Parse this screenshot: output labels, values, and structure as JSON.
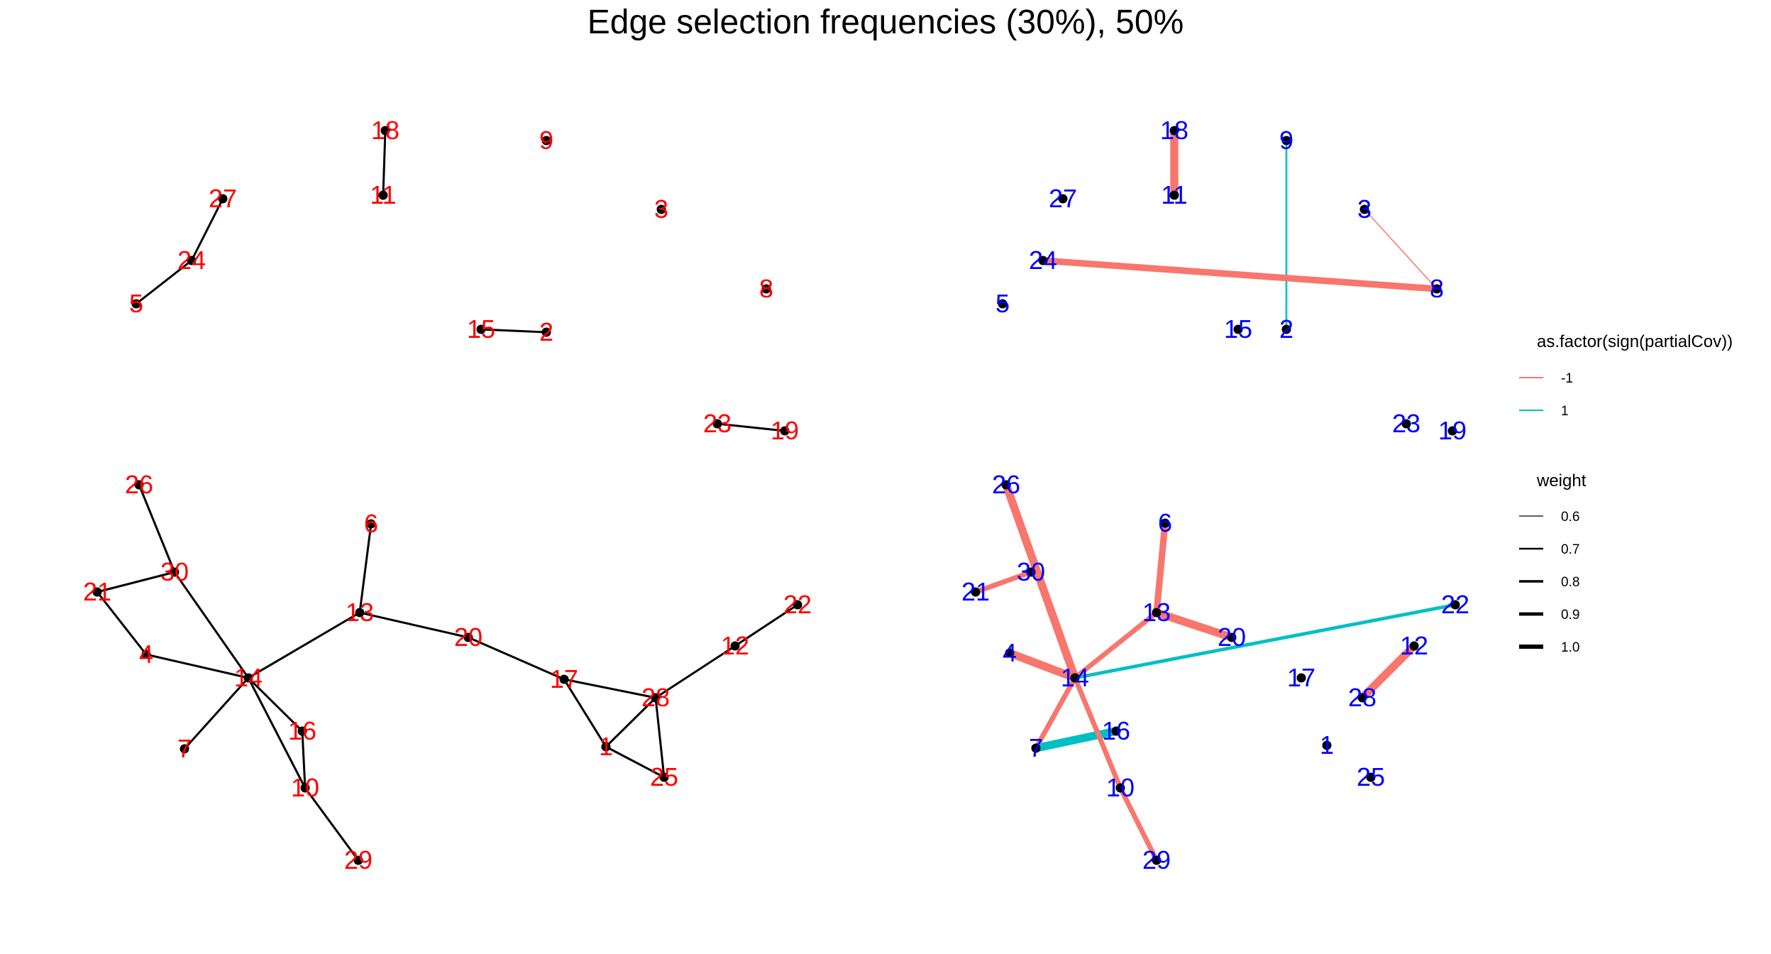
{
  "title": "Edge selection frequencies (30%), 50%",
  "colors": {
    "left_label": "#ff0000",
    "right_label": "#0000ff",
    "left_edge": "#000000",
    "neg": "#f8766d",
    "pos": "#00bfc4",
    "node": "#000000"
  },
  "nodes": [
    {
      "id": "1"
    },
    {
      "id": "2"
    },
    {
      "id": "3"
    },
    {
      "id": "4"
    },
    {
      "id": "5"
    },
    {
      "id": "6"
    },
    {
      "id": "7"
    },
    {
      "id": "8"
    },
    {
      "id": "9"
    },
    {
      "id": "10"
    },
    {
      "id": "11"
    },
    {
      "id": "12"
    },
    {
      "id": "13"
    },
    {
      "id": "14"
    },
    {
      "id": "15"
    },
    {
      "id": "16"
    },
    {
      "id": "17"
    },
    {
      "id": "18"
    },
    {
      "id": "19"
    },
    {
      "id": "20"
    },
    {
      "id": "21"
    },
    {
      "id": "22"
    },
    {
      "id": "23"
    },
    {
      "id": "24"
    },
    {
      "id": "25"
    },
    {
      "id": "26"
    },
    {
      "id": "27"
    },
    {
      "id": "28"
    },
    {
      "id": "29"
    },
    {
      "id": "30"
    }
  ],
  "left_edges": [
    [
      "27",
      "24"
    ],
    [
      "24",
      "5"
    ],
    [
      "18",
      "11"
    ],
    [
      "15",
      "2"
    ],
    [
      "23",
      "19"
    ],
    [
      "26",
      "30"
    ],
    [
      "30",
      "21"
    ],
    [
      "21",
      "4"
    ],
    [
      "4",
      "14"
    ],
    [
      "30",
      "14"
    ],
    [
      "14",
      "7"
    ],
    [
      "14",
      "13"
    ],
    [
      "13",
      "6"
    ],
    [
      "13",
      "20"
    ],
    [
      "20",
      "17"
    ],
    [
      "17",
      "28"
    ],
    [
      "17",
      "1"
    ],
    [
      "1",
      "28"
    ],
    [
      "1",
      "25"
    ],
    [
      "28",
      "25"
    ],
    [
      "28",
      "12"
    ],
    [
      "12",
      "22"
    ],
    [
      "14",
      "16"
    ],
    [
      "16",
      "10"
    ],
    [
      "14",
      "10"
    ],
    [
      "10",
      "29"
    ]
  ],
  "right_edges": [
    {
      "from": "18",
      "to": "11",
      "sign": "-1",
      "weight": 1.0
    },
    {
      "from": "9",
      "to": "2",
      "sign": "1",
      "weight": 0.6
    },
    {
      "from": "3",
      "to": "8",
      "sign": "-1",
      "weight": 0.55
    },
    {
      "from": "24",
      "to": "8",
      "sign": "-1",
      "weight": 0.9
    },
    {
      "from": "26",
      "to": "14",
      "sign": "-1",
      "weight": 1.0
    },
    {
      "from": "30",
      "to": "21",
      "sign": "-1",
      "weight": 0.8
    },
    {
      "from": "4",
      "to": "14",
      "sign": "-1",
      "weight": 1.0
    },
    {
      "from": "14",
      "to": "13",
      "sign": "-1",
      "weight": 0.8
    },
    {
      "from": "13",
      "to": "6",
      "sign": "-1",
      "weight": 0.9
    },
    {
      "from": "13",
      "to": "20",
      "sign": "-1",
      "weight": 1.0
    },
    {
      "from": "14",
      "to": "22",
      "sign": "1",
      "weight": 0.7
    },
    {
      "from": "14",
      "to": "7",
      "sign": "-1",
      "weight": 0.8
    },
    {
      "from": "7",
      "to": "16",
      "sign": "1",
      "weight": 1.0
    },
    {
      "from": "14",
      "to": "10",
      "sign": "-1",
      "weight": 0.8
    },
    {
      "from": "10",
      "to": "29",
      "sign": "-1",
      "weight": 0.8
    },
    {
      "from": "12",
      "to": "28",
      "sign": "-1",
      "weight": 1.0
    }
  ],
  "legend": {
    "color_title": "as.factor(sign(partialCov))",
    "color_items": [
      {
        "label": "-1",
        "key": "neg"
      },
      {
        "label": "1",
        "key": "pos"
      }
    ],
    "weight_title": "weight",
    "weight_items": [
      {
        "label": "0.6",
        "value": 0.6
      },
      {
        "label": "0.7",
        "value": 0.7
      },
      {
        "label": "0.8",
        "value": 0.8
      },
      {
        "label": "0.9",
        "value": 0.9
      },
      {
        "label": "1.0",
        "value": 1.0
      }
    ]
  }
}
